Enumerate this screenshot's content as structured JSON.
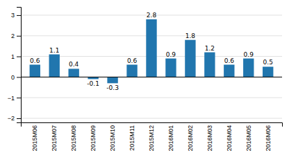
{
  "chart_data": {
    "type": "bar",
    "categories": [
      "2015M06",
      "2015M07",
      "2015M08",
      "2015M09",
      "2015M10",
      "2015M11",
      "2015M12",
      "2016M01",
      "2016M02",
      "2016M03",
      "2016M04",
      "2016M05",
      "2016M06"
    ],
    "values": [
      0.6,
      1.1,
      0.4,
      -0.1,
      -0.3,
      0.6,
      2.8,
      0.9,
      1.8,
      1.2,
      0.6,
      0.9,
      0.5
    ],
    "color": "#2176ae",
    "ylim": [
      -2.2,
      3.4
    ],
    "yticks": [
      -2,
      -1,
      0,
      1,
      2,
      3
    ],
    "grid": true,
    "data_labels": true
  }
}
